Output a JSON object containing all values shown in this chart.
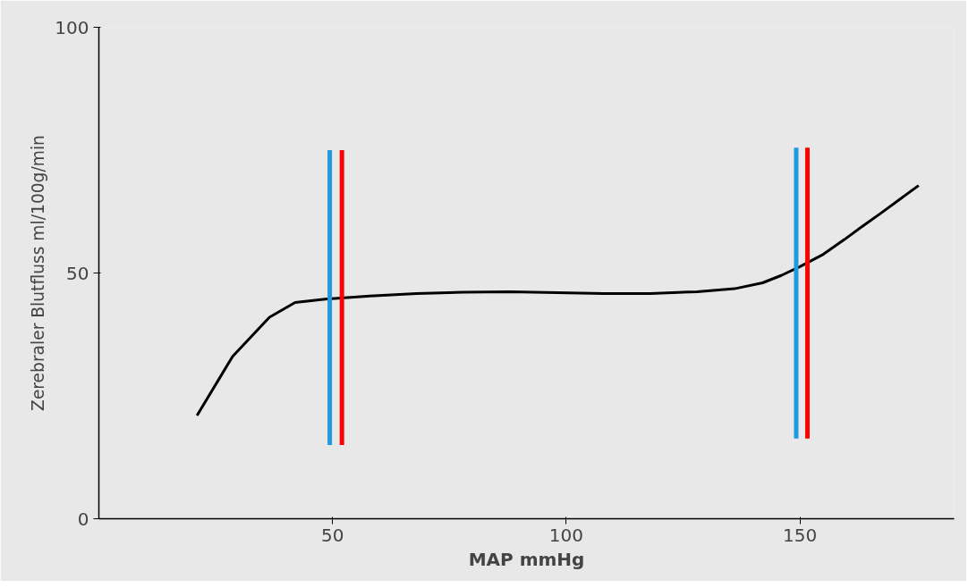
{
  "chart_data": {
    "type": "line",
    "xlabel": "MAP mmHg",
    "ylabel": "Zerebraler Blutfluss ml/100g/min",
    "xlim": [
      0,
      183
    ],
    "ylim": [
      0,
      100
    ],
    "xticks": [
      50,
      100,
      150
    ],
    "yticks": [
      0,
      50,
      100
    ],
    "marker": "none",
    "line_style": "solid",
    "series": [
      {
        "color": "#000000",
        "x": [
          21,
          28.6,
          36.5,
          42,
          48.4,
          58,
          68,
          78,
          88,
          98,
          108,
          118,
          128,
          136,
          142,
          146,
          150,
          155,
          159.5,
          163.5,
          167.5,
          171.5,
          175.4
        ],
        "values": [
          21,
          33,
          41,
          44,
          44.7,
          45.3,
          45.8,
          46.1,
          46.2,
          46,
          45.8,
          45.8,
          46.2,
          46.8,
          48,
          49.5,
          51.3,
          53.8,
          56.8,
          59.6,
          62.3,
          65.1,
          67.8
        ]
      },
      {
        "color": "#1e9ae0",
        "x": [
          49.4,
          49.4
        ],
        "values": [
          15,
          75
        ]
      },
      {
        "color": "#ff0000",
        "x": [
          52,
          52
        ],
        "values": [
          15,
          75
        ]
      },
      {
        "color": "#1e9ae0",
        "x": [
          149.2,
          149.2
        ],
        "values": [
          16.3,
          75.5
        ]
      },
      {
        "color": "#ff0000",
        "x": [
          151.6,
          151.6
        ],
        "values": [
          16.3,
          75.5
        ]
      }
    ]
  }
}
